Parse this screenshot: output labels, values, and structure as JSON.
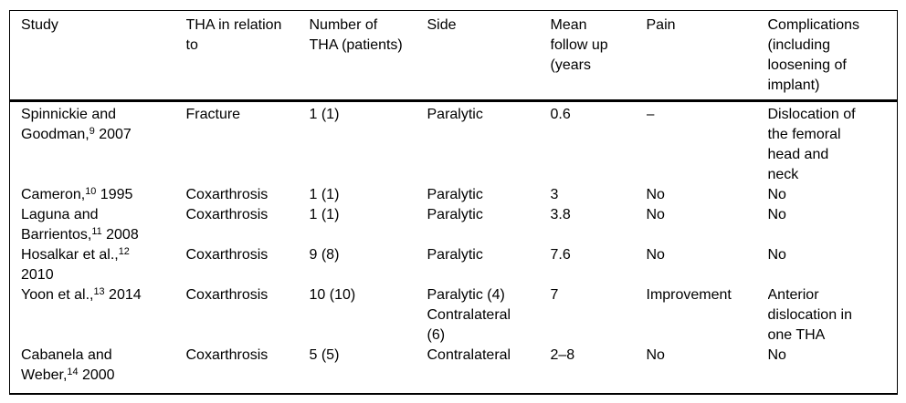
{
  "page": {
    "background": "#ffffff",
    "text_color": "#000000",
    "rule_color": "#000000"
  },
  "table": {
    "headers": [
      "Study",
      "THA in relation\nto",
      "Number of\nTHA (patients)",
      "Side",
      "Mean\nfollow up\n(years",
      "Pain",
      "Complications\n(including\nloosening of\nimplant)"
    ],
    "rows": [
      [
        "Spinnickie and\nGoodman,^9 2007",
        "Fracture",
        "1 (1)",
        "Paralytic",
        "0.6",
        "–",
        "Dislocation of\nthe femoral\nhead and\nneck"
      ],
      [
        "Cameron,^10 1995",
        "Coxarthrosis",
        "1 (1)",
        "Paralytic",
        "3",
        "No",
        "No"
      ],
      [
        "Laguna and\nBarrientos,^11 2008",
        "Coxarthrosis",
        "1 (1)",
        "Paralytic",
        "3.8",
        "No",
        "No"
      ],
      [
        "Hosalkar et al.,^12\n2010",
        "Coxarthrosis",
        "9 (8)",
        "Paralytic",
        "7.6",
        "No",
        "No"
      ],
      [
        "Yoon et al.,^13 2014",
        "Coxarthrosis",
        "10 (10)",
        "Paralytic (4)\nContralateral\n(6)",
        "7",
        "Improvement",
        "Anterior\ndislocation in\none THA"
      ],
      [
        "Cabanela and\nWeber,^14 2000",
        "Coxarthrosis",
        "5 (5)",
        "Contralateral",
        "2–8",
        "No",
        "No"
      ]
    ]
  }
}
